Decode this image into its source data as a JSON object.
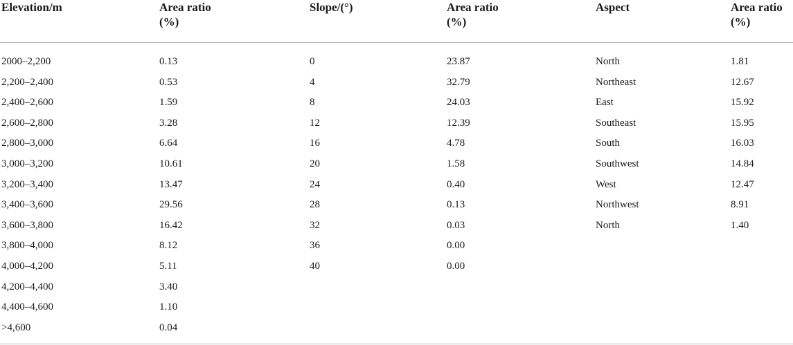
{
  "headers": {
    "elevation": [
      "Elevation/m"
    ],
    "elevation_ratio": [
      "Area ratio",
      "(%)"
    ],
    "slope": [
      "Slope/(°)"
    ],
    "slope_ratio": [
      "Area ratio",
      "(%)"
    ],
    "aspect": [
      "Aspect"
    ],
    "aspect_ratio": [
      "Area ratio",
      "(%)"
    ]
  },
  "elevation_rows": [
    {
      "range": "2000–2,200",
      "ratio": "0.13"
    },
    {
      "range": "2,200–2,400",
      "ratio": "0.53"
    },
    {
      "range": "2,400–2,600",
      "ratio": "1.59"
    },
    {
      "range": "2,600–2,800",
      "ratio": "3.28"
    },
    {
      "range": "2,800–3,000",
      "ratio": "6.64"
    },
    {
      "range": "3,000–3,200",
      "ratio": "10.61"
    },
    {
      "range": "3,200–3,400",
      "ratio": "13.47"
    },
    {
      "range": "3,400–3,600",
      "ratio": "29.56"
    },
    {
      "range": "3,600–3,800",
      "ratio": "16.42"
    },
    {
      "range": "3,800–4,000",
      "ratio": "8.12"
    },
    {
      "range": "4,000–4,200",
      "ratio": "5.11"
    },
    {
      "range": "4,200–4,400",
      "ratio": "3.40"
    },
    {
      "range": "4,400–4,600",
      "ratio": "1.10"
    },
    {
      "range": ">4,600",
      "ratio": "0.04"
    }
  ],
  "slope_rows": [
    {
      "slope": "0",
      "ratio": "23.87"
    },
    {
      "slope": "4",
      "ratio": "32.79"
    },
    {
      "slope": "8",
      "ratio": "24.03"
    },
    {
      "slope": "12",
      "ratio": "12.39"
    },
    {
      "slope": "16",
      "ratio": "4.78"
    },
    {
      "slope": "20",
      "ratio": "1.58"
    },
    {
      "slope": "24",
      "ratio": "0.40"
    },
    {
      "slope": "28",
      "ratio": "0.13"
    },
    {
      "slope": "32",
      "ratio": "0.03"
    },
    {
      "slope": "36",
      "ratio": "0.00"
    },
    {
      "slope": "40",
      "ratio": "0.00"
    }
  ],
  "aspect_rows": [
    {
      "aspect": "North",
      "ratio": "1.81"
    },
    {
      "aspect": "Northeast",
      "ratio": "12.67"
    },
    {
      "aspect": "East",
      "ratio": "15.92"
    },
    {
      "aspect": "Southeast",
      "ratio": "15.95"
    },
    {
      "aspect": "South",
      "ratio": "16.03"
    },
    {
      "aspect": "Southwest",
      "ratio": "14.84"
    },
    {
      "aspect": "West",
      "ratio": "12.47"
    },
    {
      "aspect": "Northwest",
      "ratio": "8.91"
    },
    {
      "aspect": "North",
      "ratio": "1.40"
    }
  ]
}
